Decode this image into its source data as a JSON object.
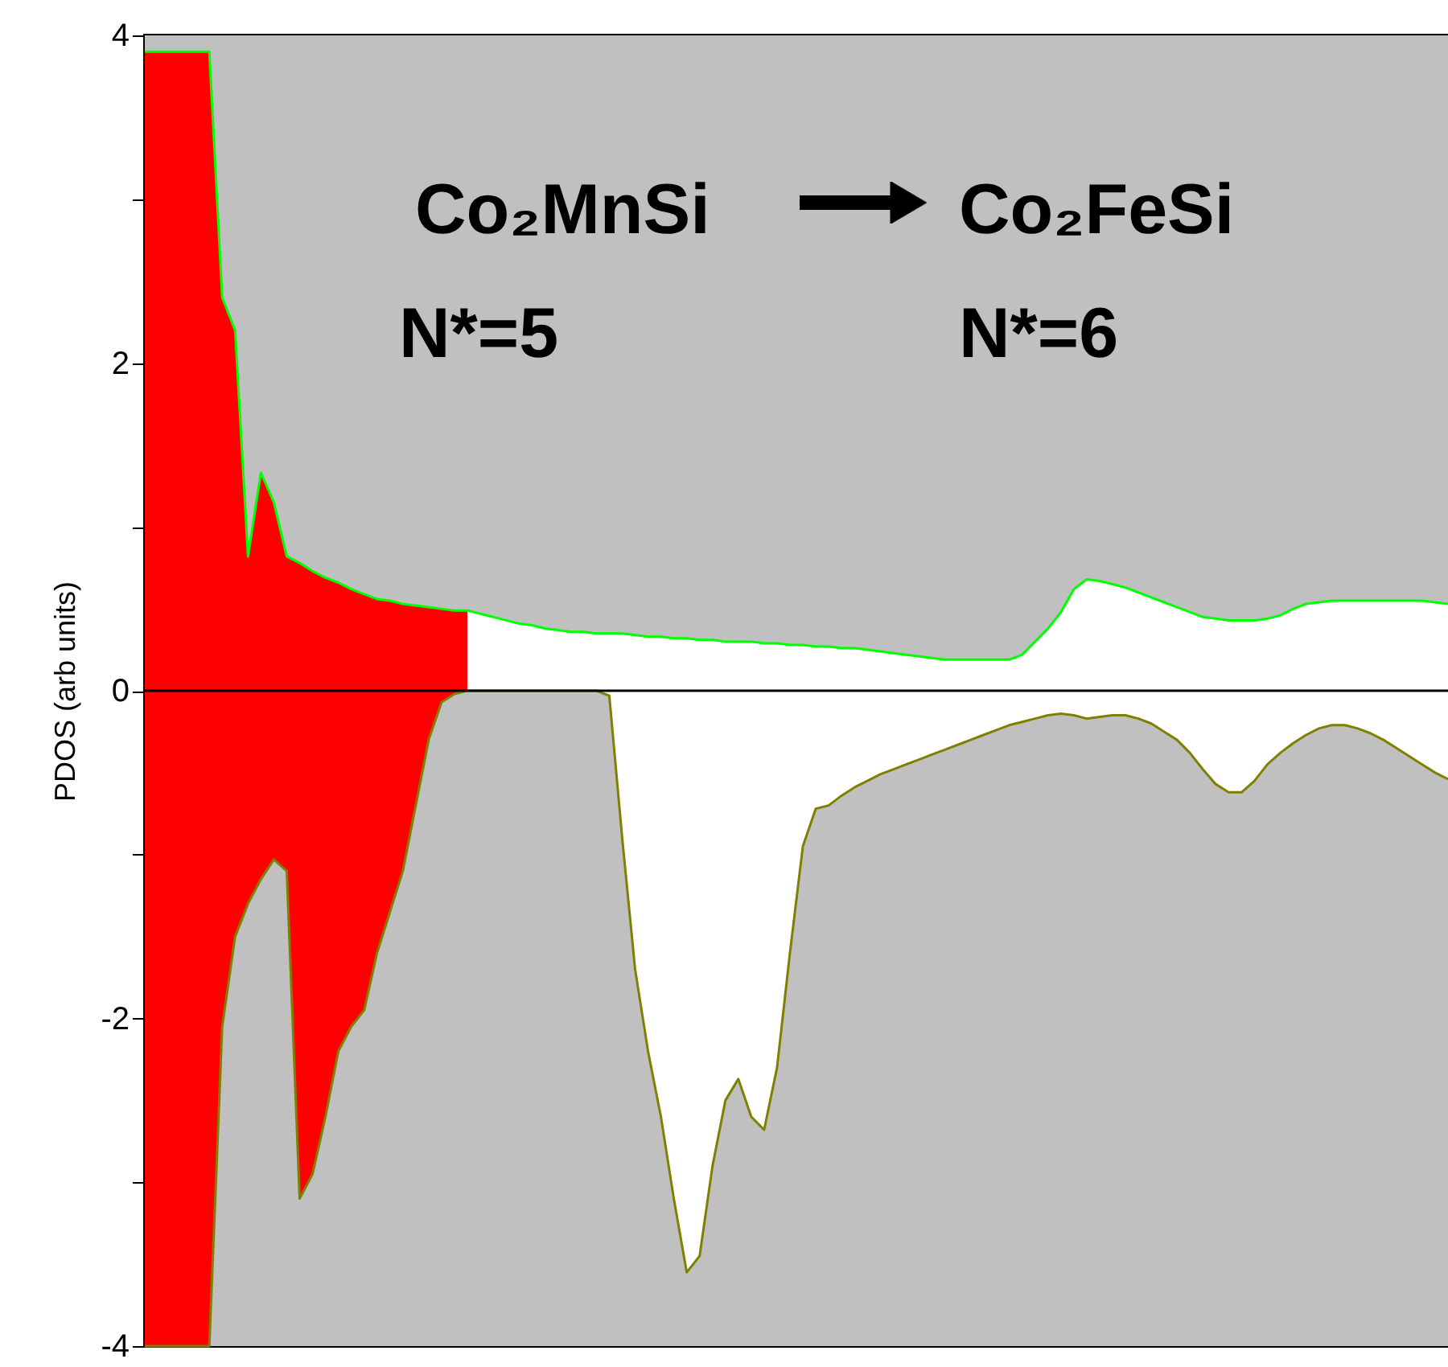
{
  "chart_data": {
    "type": "area",
    "ylabel": "PDOS (arb units)",
    "annotations": [
      "Co₂MnSi",
      "Co₂FeSi",
      "N*=5",
      "N*=6"
    ],
    "categories": [
      null,
      null,
      null,
      null,
      null,
      null,
      null,
      null,
      null,
      null,
      null,
      null,
      null,
      null,
      null,
      null,
      null,
      null,
      null,
      null,
      null,
      null,
      null,
      null,
      null,
      null,
      null,
      null,
      null,
      null,
      null,
      null,
      null,
      null,
      null,
      null,
      null,
      null,
      null,
      null,
      null,
      null,
      null,
      null,
      null,
      null,
      null,
      null,
      null,
      null,
      null,
      null,
      null,
      null,
      null,
      null,
      null,
      null,
      null,
      null,
      null,
      null,
      null,
      null,
      null,
      null,
      null,
      null,
      null,
      null,
      null,
      null,
      null,
      null,
      null,
      null,
      null,
      null,
      null,
      null,
      null,
      null,
      null,
      null,
      null,
      null,
      null,
      null,
      null,
      null,
      null,
      null,
      null,
      null,
      null,
      null,
      null,
      null,
      null,
      null,
      null,
      null
    ],
    "ylim": [
      -4,
      4
    ],
    "yticks": [
      -4,
      {
        "value": -3,
        "label": null
      },
      -2,
      {
        "value": -1,
        "label": null
      },
      0,
      {
        "value": 1,
        "label": null
      },
      2,
      {
        "value": 3,
        "label": null
      },
      4
    ],
    "grid": false,
    "bands": [
      {
        "axis": "y",
        "from": -4,
        "to": 4,
        "color": "#c0c0c0"
      }
    ],
    "ref_lines": [
      {
        "axis": "y",
        "value": 0,
        "color": "#000000"
      }
    ],
    "series": [
      {
        "color": "#ff0000",
        "values": [
          3.9,
          3.9,
          3.9,
          3.9,
          3.9,
          3.9,
          2.4,
          2.2,
          0.82,
          1.33,
          1.15,
          0.82,
          0.78,
          0.73,
          0.69,
          0.66,
          0.62,
          0.59,
          0.56,
          0.55,
          0.53,
          0.52,
          0.51,
          0.5,
          0.49,
          0.49,
          null,
          null,
          null,
          null,
          null,
          null,
          null,
          null,
          null,
          null,
          null,
          null,
          null,
          null,
          null,
          null,
          null,
          null,
          null,
          null,
          null,
          null,
          null,
          null,
          null,
          null,
          null,
          null,
          null,
          null,
          null,
          null,
          null,
          null,
          null,
          null,
          null,
          null,
          null,
          null,
          null,
          null,
          null,
          null,
          null,
          null,
          null,
          null,
          null,
          null,
          null,
          null,
          null,
          null,
          null,
          null,
          null,
          null,
          null,
          null,
          null,
          null,
          null,
          null,
          null,
          null,
          null,
          null,
          null,
          null,
          null,
          null,
          null,
          null,
          null,
          null
        ]
      },
      {
        "color": "#ffffff",
        "values": [
          null,
          null,
          null,
          null,
          null,
          null,
          null,
          null,
          null,
          null,
          null,
          null,
          null,
          null,
          null,
          null,
          null,
          null,
          null,
          null,
          null,
          null,
          null,
          null,
          null,
          0.49,
          0.47,
          0.45,
          0.43,
          0.41,
          0.4,
          0.38,
          0.37,
          0.36,
          0.36,
          0.35,
          0.35,
          0.35,
          0.34,
          0.33,
          0.33,
          0.32,
          0.32,
          0.31,
          0.31,
          0.3,
          0.3,
          0.3,
          0.29,
          0.29,
          0.28,
          0.28,
          0.27,
          0.27,
          0.26,
          0.26,
          0.25,
          0.24,
          0.23,
          0.22,
          0.21,
          0.2,
          0.19,
          0.19,
          0.19,
          0.19,
          0.19,
          0.19,
          0.22,
          0.3,
          0.38,
          0.48,
          0.62,
          0.68,
          0.67,
          0.65,
          0.63,
          0.6,
          0.57,
          0.54,
          0.51,
          0.48,
          0.45,
          0.44,
          0.43,
          0.43,
          0.43,
          0.44,
          0.46,
          0.5,
          0.53,
          0.54,
          0.55,
          0.55,
          0.55,
          0.55,
          0.55,
          0.55,
          0.55,
          0.55,
          0.54,
          0.53
        ]
      },
      {
        "color": "#ff0000",
        "values": [
          -4,
          -4,
          -4,
          -4,
          -4,
          -4,
          -2.05,
          -1.5,
          -1.3,
          -1.15,
          -1.03,
          -1.1,
          -3.1,
          -2.95,
          -2.6,
          -2.2,
          -2.05,
          -1.95,
          -1.6,
          -1.35,
          -1.1,
          -0.7,
          -0.3,
          -0.07,
          -0.02,
          0,
          null,
          null,
          null,
          null,
          null,
          null,
          null,
          null,
          null,
          null,
          null,
          null,
          null,
          null,
          null,
          null,
          null,
          null,
          null,
          null,
          null,
          null,
          null,
          null,
          null,
          null,
          null,
          null,
          null,
          null,
          null,
          null,
          null,
          null,
          null,
          null,
          null,
          null,
          null,
          null,
          null,
          null,
          null,
          null,
          null,
          null,
          null,
          null,
          null,
          null,
          null,
          null,
          null,
          null,
          null,
          null,
          null,
          null,
          null,
          null,
          null,
          null,
          null,
          null,
          null,
          null,
          null,
          null,
          null,
          null,
          null,
          null,
          null,
          null,
          null,
          null
        ]
      },
      {
        "color": "#ffffff",
        "values": [
          null,
          null,
          null,
          null,
          null,
          null,
          null,
          null,
          null,
          null,
          null,
          null,
          null,
          null,
          null,
          null,
          null,
          null,
          null,
          null,
          null,
          null,
          null,
          null,
          null,
          0,
          0,
          0,
          0,
          0,
          0,
          0,
          0,
          0,
          0,
          0,
          -0.03,
          -0.9,
          -1.7,
          -2.2,
          -2.6,
          -3.1,
          -3.55,
          -3.45,
          -2.9,
          -2.5,
          -2.37,
          -2.6,
          -2.68,
          -2.3,
          -1.6,
          -0.95,
          -0.72,
          -0.7,
          -0.64,
          -0.59,
          -0.55,
          -0.51,
          -0.48,
          -0.45,
          -0.42,
          -0.39,
          -0.36,
          -0.33,
          -0.3,
          -0.27,
          -0.24,
          -0.21,
          -0.19,
          -0.17,
          -0.15,
          -0.14,
          -0.15,
          -0.17,
          -0.16,
          -0.15,
          -0.15,
          -0.17,
          -0.2,
          -0.25,
          -0.3,
          -0.38,
          -0.48,
          -0.57,
          -0.62,
          -0.62,
          -0.55,
          -0.45,
          -0.38,
          -0.32,
          -0.27,
          -0.23,
          -0.21,
          -0.21,
          -0.23,
          -0.26,
          -0.3,
          -0.35,
          -0.4,
          -0.45,
          -0.5,
          -0.54
        ]
      },
      {
        "type": "line",
        "color": "#00ff00",
        "values": [
          3.9,
          3.9,
          3.9,
          3.9,
          3.9,
          3.9,
          2.4,
          2.2,
          0.82,
          1.33,
          1.15,
          0.82,
          0.78,
          0.73,
          0.69,
          0.66,
          0.62,
          0.59,
          0.56,
          0.55,
          0.53,
          0.52,
          0.51,
          0.5,
          0.49,
          0.49,
          0.47,
          0.45,
          0.43,
          0.41,
          0.4,
          0.38,
          0.37,
          0.36,
          0.36,
          0.35,
          0.35,
          0.35,
          0.34,
          0.33,
          0.33,
          0.32,
          0.32,
          0.31,
          0.31,
          0.3,
          0.3,
          0.3,
          0.29,
          0.29,
          0.28,
          0.28,
          0.27,
          0.27,
          0.26,
          0.26,
          0.25,
          0.24,
          0.23,
          0.22,
          0.21,
          0.2,
          0.19,
          0.19,
          0.19,
          0.19,
          0.19,
          0.19,
          0.22,
          0.3,
          0.38,
          0.48,
          0.62,
          0.68,
          0.67,
          0.65,
          0.63,
          0.6,
          0.57,
          0.54,
          0.51,
          0.48,
          0.45,
          0.44,
          0.43,
          0.43,
          0.43,
          0.44,
          0.46,
          0.5,
          0.53,
          0.54,
          0.55,
          0.55,
          0.55,
          0.55,
          0.55,
          0.55,
          0.55,
          0.55,
          0.54,
          0.53
        ]
      },
      {
        "type": "line",
        "color": "#808000",
        "values": [
          -4,
          -4,
          -4,
          -4,
          -4,
          -4,
          -2.05,
          -1.5,
          -1.3,
          -1.15,
          -1.03,
          -1.1,
          -3.1,
          -2.95,
          -2.6,
          -2.2,
          -2.05,
          -1.95,
          -1.6,
          -1.35,
          -1.1,
          -0.7,
          -0.3,
          -0.07,
          -0.02,
          0,
          0,
          0,
          0,
          0,
          0,
          0,
          0,
          0,
          0,
          0,
          -0.03,
          -0.9,
          -1.7,
          -2.2,
          -2.6,
          -3.1,
          -3.55,
          -3.45,
          -2.9,
          -2.5,
          -2.37,
          -2.6,
          -2.68,
          -2.3,
          -1.6,
          -0.95,
          -0.72,
          -0.7,
          -0.64,
          -0.59,
          -0.55,
          -0.51,
          -0.48,
          -0.45,
          -0.42,
          -0.39,
          -0.36,
          -0.33,
          -0.3,
          -0.27,
          -0.24,
          -0.21,
          -0.19,
          -0.17,
          -0.15,
          -0.14,
          -0.15,
          -0.17,
          -0.16,
          -0.15,
          -0.15,
          -0.17,
          -0.2,
          -0.25,
          -0.3,
          -0.38,
          -0.48,
          -0.57,
          -0.62,
          -0.62,
          -0.55,
          -0.45,
          -0.38,
          -0.32,
          -0.27,
          -0.23,
          -0.21,
          -0.21,
          -0.23,
          -0.26,
          -0.3,
          -0.35,
          -0.4,
          -0.45,
          -0.5,
          -0.54
        ]
      }
    ]
  }
}
